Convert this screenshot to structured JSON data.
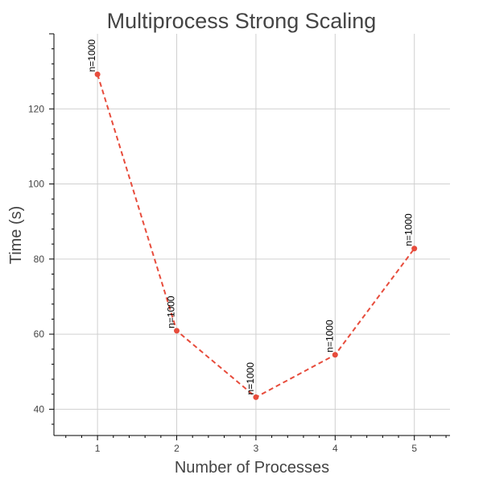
{
  "chart_data": {
    "type": "line",
    "title": "Multiprocess Strong Scaling",
    "xlabel": "Number of Processes",
    "ylabel": "Time (s)",
    "xlim": [
      0.45,
      5.45
    ],
    "ylim": [
      33,
      140
    ],
    "xticks": [
      1,
      2,
      3,
      4,
      5
    ],
    "yticks": [
      40,
      60,
      80,
      100,
      120
    ],
    "grid": true,
    "series": [
      {
        "x": [
          1,
          2,
          3,
          4,
          5
        ],
        "values": [
          129.2,
          60.9,
          43.2,
          54.5,
          82.8
        ],
        "labels": [
          "n=1000",
          "n=1000",
          "n=1000",
          "n=1000",
          "n=1000"
        ],
        "color": "#e74c3c",
        "line_style": "dashed"
      }
    ]
  }
}
